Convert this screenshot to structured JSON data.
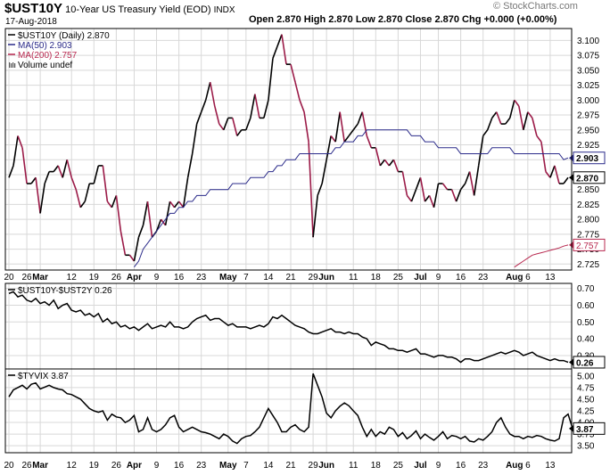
{
  "header": {
    "symbol": "$UST10Y",
    "name": "10-Year US Treasury Yield (EOD)",
    "exchange": "INDX",
    "date": "17-Aug-2018",
    "ohlc_text": "Open 2.870 High 2.870 Low 2.870 Close 2.870 Chg +0.000 (+0.00%)",
    "watermark": "© StockCharts.com"
  },
  "colors": {
    "price": "#000000",
    "down": "#9b1b48",
    "ma50": "#2b2b8a",
    "ma200": "#b8284f",
    "grid": "#d8d8d8"
  },
  "chart_data": [
    {
      "type": "line",
      "title": "$UST10Y (Daily) 2.870",
      "legend": [
        {
          "label": "$UST10Y (Daily) 2.870",
          "color": "#000000"
        },
        {
          "label": "MA(50) 2.903",
          "color": "#2b2b8a"
        },
        {
          "label": "MA(200) 2.757",
          "color": "#b8284f"
        },
        {
          "label": "Volume undef",
          "color": "#555555",
          "icon": "volume-bars-icon"
        }
      ],
      "legend_placement": "top-left",
      "ylim": [
        2.715,
        3.12
      ],
      "yticks": [
        "3.100",
        "3.075",
        "3.050",
        "3.025",
        "3.000",
        "2.975",
        "2.950",
        "2.925",
        "2.900",
        "2.875",
        "2.850",
        "2.825",
        "2.800",
        "2.775",
        "2.750",
        "2.725"
      ],
      "grid": true,
      "x": [
        "2018-02-20",
        "2018-02-21",
        "2018-02-22",
        "2018-02-23",
        "2018-02-26",
        "2018-02-27",
        "2018-02-28",
        "2018-03-01",
        "2018-03-02",
        "2018-03-05",
        "2018-03-06",
        "2018-03-07",
        "2018-03-08",
        "2018-03-09",
        "2018-03-12",
        "2018-03-13",
        "2018-03-14",
        "2018-03-15",
        "2018-03-16",
        "2018-03-19",
        "2018-03-20",
        "2018-03-21",
        "2018-03-22",
        "2018-03-23",
        "2018-03-26",
        "2018-03-27",
        "2018-03-28",
        "2018-03-29",
        "2018-04-02",
        "2018-04-03",
        "2018-04-04",
        "2018-04-05",
        "2018-04-06",
        "2018-04-09",
        "2018-04-10",
        "2018-04-11",
        "2018-04-12",
        "2018-04-13",
        "2018-04-16",
        "2018-04-17",
        "2018-04-18",
        "2018-04-19",
        "2018-04-20",
        "2018-04-23",
        "2018-04-24",
        "2018-04-25",
        "2018-04-26",
        "2018-04-27",
        "2018-04-30",
        "2018-05-01",
        "2018-05-02",
        "2018-05-03",
        "2018-05-04",
        "2018-05-07",
        "2018-05-08",
        "2018-05-09",
        "2018-05-10",
        "2018-05-11",
        "2018-05-14",
        "2018-05-15",
        "2018-05-16",
        "2018-05-17",
        "2018-05-18",
        "2018-05-21",
        "2018-05-22",
        "2018-05-23",
        "2018-05-24",
        "2018-05-25",
        "2018-05-29",
        "2018-05-30",
        "2018-05-31",
        "2018-06-01",
        "2018-06-04",
        "2018-06-05",
        "2018-06-06",
        "2018-06-07",
        "2018-06-08",
        "2018-06-11",
        "2018-06-12",
        "2018-06-13",
        "2018-06-14",
        "2018-06-15",
        "2018-06-18",
        "2018-06-19",
        "2018-06-20",
        "2018-06-21",
        "2018-06-22",
        "2018-06-25",
        "2018-06-26",
        "2018-06-27",
        "2018-06-28",
        "2018-06-29",
        "2018-07-02",
        "2018-07-03",
        "2018-07-05",
        "2018-07-06",
        "2018-07-09",
        "2018-07-10",
        "2018-07-11",
        "2018-07-12",
        "2018-07-13",
        "2018-07-16",
        "2018-07-17",
        "2018-07-18",
        "2018-07-19",
        "2018-07-20",
        "2018-07-23",
        "2018-07-24",
        "2018-07-25",
        "2018-07-26",
        "2018-07-27",
        "2018-07-30",
        "2018-07-31",
        "2018-08-01",
        "2018-08-02",
        "2018-08-03",
        "2018-08-06",
        "2018-08-07",
        "2018-08-08",
        "2018-08-09",
        "2018-08-10",
        "2018-08-13",
        "2018-08-14",
        "2018-08-15",
        "2018-08-16",
        "2018-08-17"
      ],
      "series": [
        {
          "name": "$UST10Y (Daily)",
          "values": [
            2.87,
            2.89,
            2.94,
            2.92,
            2.86,
            2.86,
            2.87,
            2.81,
            2.86,
            2.88,
            2.88,
            2.89,
            2.87,
            2.9,
            2.87,
            2.85,
            2.82,
            2.83,
            2.86,
            2.86,
            2.89,
            2.89,
            2.83,
            2.82,
            2.84,
            2.78,
            2.74,
            2.74,
            2.73,
            2.77,
            2.79,
            2.83,
            2.77,
            2.78,
            2.8,
            2.79,
            2.83,
            2.82,
            2.83,
            2.82,
            2.87,
            2.91,
            2.96,
            2.98,
            3.0,
            3.03,
            2.99,
            2.96,
            2.95,
            2.97,
            2.97,
            2.94,
            2.95,
            2.95,
            2.97,
            3.01,
            2.97,
            2.97,
            3.0,
            3.07,
            3.09,
            3.11,
            3.06,
            3.06,
            3.03,
            3.0,
            2.98,
            2.93,
            2.77,
            2.84,
            2.86,
            2.9,
            2.94,
            2.93,
            2.98,
            2.93,
            2.94,
            2.95,
            2.96,
            2.98,
            2.94,
            2.92,
            2.92,
            2.89,
            2.9,
            2.89,
            2.9,
            2.88,
            2.88,
            2.84,
            2.83,
            2.85,
            2.87,
            2.83,
            2.84,
            2.82,
            2.86,
            2.86,
            2.85,
            2.85,
            2.83,
            2.85,
            2.86,
            2.88,
            2.84,
            2.89,
            2.94,
            2.95,
            2.97,
            2.98,
            2.96,
            2.96,
            2.97,
            3.0,
            2.99,
            2.95,
            2.98,
            2.97,
            2.94,
            2.93,
            2.88,
            2.87,
            2.89,
            2.86,
            2.86,
            2.87
          ]
        },
        {
          "name": "MA(50)",
          "values": [
            null,
            null,
            null,
            null,
            null,
            null,
            null,
            null,
            null,
            null,
            null,
            null,
            null,
            null,
            null,
            null,
            null,
            null,
            null,
            null,
            null,
            null,
            null,
            null,
            null,
            null,
            null,
            null,
            2.72,
            2.73,
            2.75,
            2.76,
            2.77,
            2.78,
            2.79,
            2.8,
            2.81,
            2.81,
            2.82,
            2.82,
            2.83,
            2.83,
            2.84,
            2.84,
            2.84,
            2.85,
            2.85,
            2.85,
            2.85,
            2.85,
            2.86,
            2.86,
            2.86,
            2.86,
            2.87,
            2.87,
            2.87,
            2.87,
            2.88,
            2.88,
            2.89,
            2.89,
            2.9,
            2.9,
            2.9,
            2.91,
            2.91,
            2.91,
            2.91,
            2.91,
            2.91,
            2.91,
            2.91,
            2.92,
            2.92,
            2.93,
            2.93,
            2.93,
            2.94,
            2.94,
            2.95,
            2.95,
            2.95,
            2.95,
            2.95,
            2.95,
            2.95,
            2.95,
            2.95,
            2.95,
            2.94,
            2.94,
            2.94,
            2.93,
            2.93,
            2.93,
            2.92,
            2.92,
            2.92,
            2.92,
            2.92,
            2.91,
            2.91,
            2.91,
            2.91,
            2.91,
            2.91,
            2.91,
            2.92,
            2.92,
            2.92,
            2.92,
            2.92,
            2.91,
            2.91,
            2.91,
            2.91,
            2.91,
            2.91,
            2.91,
            2.91,
            2.91,
            2.91,
            2.91,
            2.9,
            2.903
          ]
        },
        {
          "name": "MA(200)",
          "values": [
            null,
            null,
            null,
            null,
            null,
            null,
            null,
            null,
            null,
            null,
            null,
            null,
            null,
            null,
            null,
            null,
            null,
            null,
            null,
            null,
            null,
            null,
            null,
            null,
            null,
            null,
            null,
            null,
            null,
            null,
            null,
            null,
            null,
            null,
            null,
            null,
            null,
            null,
            null,
            null,
            null,
            null,
            null,
            null,
            null,
            null,
            null,
            null,
            null,
            null,
            null,
            null,
            null,
            null,
            null,
            null,
            null,
            null,
            null,
            null,
            null,
            null,
            null,
            null,
            null,
            null,
            null,
            null,
            null,
            null,
            null,
            null,
            null,
            null,
            null,
            null,
            null,
            null,
            null,
            null,
            null,
            null,
            null,
            null,
            null,
            null,
            null,
            null,
            null,
            null,
            null,
            null,
            null,
            null,
            null,
            null,
            null,
            null,
            null,
            null,
            null,
            null,
            null,
            null,
            null,
            null,
            null,
            null,
            null,
            null,
            null,
            null,
            null,
            2.72,
            2.725,
            2.73,
            2.735,
            2.74,
            2.742,
            2.744,
            2.746,
            2.748,
            2.75,
            2.752,
            2.755,
            2.757
          ]
        }
      ],
      "current_value_labels": [
        "2.903",
        "2.870",
        "2.757"
      ]
    },
    {
      "type": "line",
      "title": "$UST10Y-$UST2Y 0.26",
      "ylim": [
        0.22,
        0.73
      ],
      "yticks": [
        "0.70",
        "0.60",
        "0.50",
        "0.40",
        "0.30"
      ],
      "grid": true,
      "series": [
        {
          "name": "$UST10Y-$UST2Y",
          "values": [
            0.67,
            0.68,
            0.65,
            0.66,
            0.63,
            0.62,
            0.64,
            0.61,
            0.62,
            0.6,
            0.63,
            0.58,
            0.6,
            0.61,
            0.57,
            0.56,
            0.57,
            0.54,
            0.55,
            0.53,
            0.55,
            0.5,
            0.52,
            0.49,
            0.5,
            0.47,
            0.48,
            0.46,
            0.47,
            0.45,
            0.47,
            0.49,
            0.46,
            0.47,
            0.48,
            0.47,
            0.5,
            0.47,
            0.47,
            0.46,
            0.47,
            0.5,
            0.52,
            0.53,
            0.54,
            0.51,
            0.52,
            0.52,
            0.5,
            0.48,
            0.49,
            0.47,
            0.47,
            0.47,
            0.46,
            0.47,
            0.48,
            0.47,
            0.49,
            0.53,
            0.52,
            0.54,
            0.52,
            0.5,
            0.48,
            0.47,
            0.46,
            0.44,
            0.43,
            0.43,
            0.44,
            0.45,
            0.46,
            0.44,
            0.44,
            0.43,
            0.44,
            0.43,
            0.43,
            0.41,
            0.4,
            0.36,
            0.38,
            0.37,
            0.36,
            0.34,
            0.34,
            0.33,
            0.33,
            0.32,
            0.33,
            0.34,
            0.31,
            0.31,
            0.3,
            0.29,
            0.3,
            0.3,
            0.29,
            0.29,
            0.28,
            0.26,
            0.28,
            0.28,
            0.27,
            0.27,
            0.28,
            0.29,
            0.3,
            0.31,
            0.32,
            0.31,
            0.32,
            0.33,
            0.32,
            0.3,
            0.31,
            0.32,
            0.3,
            0.29,
            0.28,
            0.27,
            0.28,
            0.27,
            0.27,
            0.26
          ]
        }
      ],
      "current_value_labels": [
        "0.26"
      ]
    },
    {
      "type": "line",
      "title": "$TYVIX 3.87",
      "ylim": [
        3.35,
        5.15
      ],
      "yticks": [
        "5.00",
        "4.75",
        "4.50",
        "4.25",
        "4.00",
        "3.75",
        "3.50"
      ],
      "grid": true,
      "series": [
        {
          "name": "$TYVIX",
          "values": [
            4.55,
            4.7,
            4.75,
            4.8,
            4.72,
            4.82,
            4.85,
            4.72,
            4.76,
            4.8,
            4.75,
            4.72,
            4.7,
            4.62,
            4.6,
            4.55,
            4.5,
            4.4,
            4.3,
            4.25,
            4.22,
            4.25,
            4.05,
            4.18,
            4.12,
            4.1,
            4.0,
            4.05,
            4.15,
            3.8,
            3.85,
            4.1,
            3.85,
            3.8,
            3.85,
            3.95,
            4.1,
            4.15,
            3.9,
            3.8,
            3.85,
            3.9,
            3.85,
            3.8,
            3.78,
            3.75,
            3.7,
            3.65,
            3.75,
            3.7,
            3.6,
            3.55,
            3.65,
            3.7,
            3.72,
            3.8,
            3.9,
            4.1,
            4.3,
            4.15,
            4.0,
            3.8,
            3.8,
            3.9,
            3.95,
            3.85,
            3.8,
            3.9,
            5.05,
            4.8,
            4.55,
            4.2,
            4.1,
            4.25,
            4.35,
            4.42,
            4.36,
            4.25,
            4.15,
            3.9,
            3.7,
            3.85,
            3.7,
            3.8,
            3.75,
            3.9,
            3.85,
            3.7,
            3.78,
            3.65,
            3.72,
            3.82,
            3.65,
            3.75,
            3.68,
            3.62,
            3.7,
            3.8,
            3.65,
            3.72,
            3.7,
            3.65,
            3.7,
            3.6,
            3.58,
            3.65,
            3.62,
            3.7,
            3.8,
            4.0,
            4.1,
            3.9,
            3.75,
            3.7,
            3.7,
            3.65,
            3.7,
            3.68,
            3.72,
            3.7,
            3.65,
            3.62,
            3.6,
            3.65,
            4.1,
            4.18,
            3.87
          ]
        }
      ],
      "current_value_labels": [
        "3.87"
      ]
    }
  ],
  "x_axis_labels": [
    {
      "label": "20",
      "index": 0
    },
    {
      "label": "26",
      "index": 4
    },
    {
      "label": "Mar",
      "index": 7,
      "bold": true
    },
    {
      "label": "12",
      "index": 14
    },
    {
      "label": "19",
      "index": 19
    },
    {
      "label": "26",
      "index": 24
    },
    {
      "label": "Apr",
      "index": 28,
      "bold": true
    },
    {
      "label": "9",
      "index": 33
    },
    {
      "label": "16",
      "index": 38
    },
    {
      "label": "23",
      "index": 43
    },
    {
      "label": "May",
      "index": 49,
      "bold": true
    },
    {
      "label": "7",
      "index": 53
    },
    {
      "label": "14",
      "index": 58
    },
    {
      "label": "21",
      "index": 63
    },
    {
      "label": "29",
      "index": 68
    },
    {
      "label": "Jun",
      "index": 71,
      "bold": true
    },
    {
      "label": "11",
      "index": 77
    },
    {
      "label": "18",
      "index": 82
    },
    {
      "label": "25",
      "index": 87
    },
    {
      "label": "Jul",
      "index": 92,
      "bold": true
    },
    {
      "label": "9",
      "index": 96
    },
    {
      "label": "16",
      "index": 101
    },
    {
      "label": "23",
      "index": 106
    },
    {
      "label": "Aug",
      "index": 113,
      "bold": true
    },
    {
      "label": "6",
      "index": 116
    },
    {
      "label": "13",
      "index": 121
    }
  ]
}
